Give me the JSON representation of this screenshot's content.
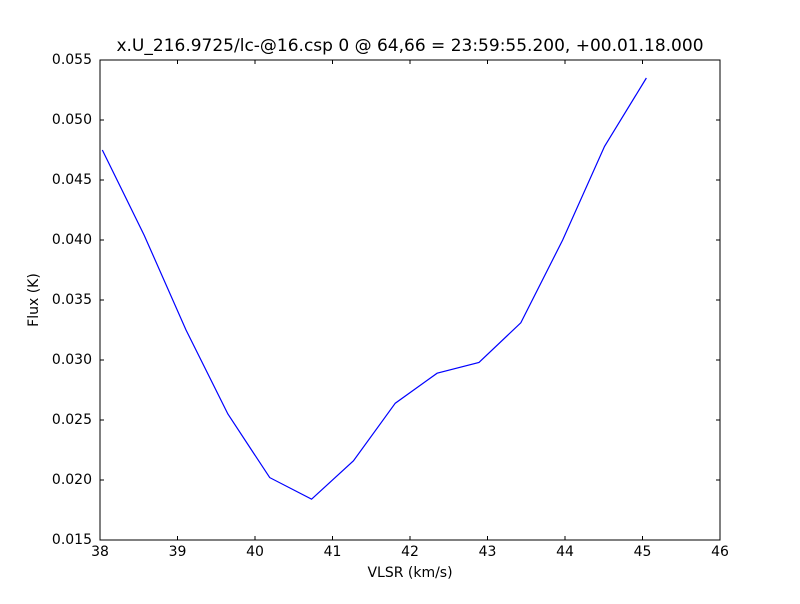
{
  "chart_data": {
    "type": "line",
    "title": "x.U_216.9725/lc-@16.csp 0 @ 64,66 = 23:59:55.200, +00.01.18.000",
    "x_label": "VLSR (km/s)",
    "y_label": "Flux (K)",
    "series": [
      {
        "color": "#0000ff",
        "x": [
          38.03,
          38.57,
          39.11,
          39.65,
          40.19,
          40.73,
          41.27,
          41.81,
          42.35,
          42.89,
          43.43,
          43.97,
          44.51,
          45.05
        ],
        "values": [
          0.0475,
          0.0404,
          0.0325,
          0.0255,
          0.0202,
          0.0184,
          0.0216,
          0.0264,
          0.0289,
          0.0298,
          0.0331,
          0.04,
          0.0478,
          0.0535
        ]
      }
    ],
    "xlim": [
      38,
      46
    ],
    "xticks": [
      38,
      39,
      40,
      41,
      42,
      43,
      44,
      45,
      46
    ],
    "ylim": [
      0.015,
      0.055
    ],
    "yticks": [
      0.015,
      {
        "value": 0.02,
        "label": "0.020"
      },
      0.025,
      {
        "value": 0.03,
        "label": "0.030"
      },
      0.035,
      {
        "value": 0.04,
        "label": "0.040"
      },
      0.045,
      {
        "value": 0.05,
        "label": "0.050"
      },
      0.055
    ]
  }
}
